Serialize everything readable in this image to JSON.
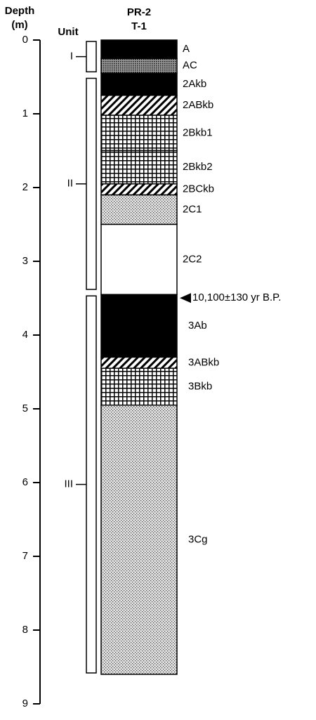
{
  "axis": {
    "title": "Depth",
    "unit": "(m)",
    "range": [
      0,
      9
    ],
    "ticks": [
      0,
      1,
      2,
      3,
      4,
      5,
      6,
      7,
      8,
      9
    ]
  },
  "column": {
    "title": "PR-2",
    "subtitle": "T-1"
  },
  "units_header": "Unit",
  "units": [
    {
      "label": "I",
      "top": 0,
      "bottom": 0.45
    },
    {
      "label": "II",
      "top": 0.5,
      "bottom": 3.4
    },
    {
      "label": "III",
      "top": 3.45,
      "bottom": 8.6
    }
  ],
  "horizons": [
    {
      "name": "A",
      "top": 0,
      "bottom": 0.25,
      "pattern": "black"
    },
    {
      "name": "AC",
      "top": 0.25,
      "bottom": 0.45,
      "pattern": "densedots"
    },
    {
      "name": "2Akb",
      "top": 0.45,
      "bottom": 0.75,
      "pattern": "black"
    },
    {
      "name": "2ABkb",
      "top": 0.75,
      "bottom": 1.02,
      "pattern": "diagonal"
    },
    {
      "name": "2Bkb1",
      "top": 1.02,
      "bottom": 1.5,
      "pattern": "grid"
    },
    {
      "name": "2Bkb2",
      "top": 1.5,
      "bottom": 1.95,
      "pattern": "grid"
    },
    {
      "name": "2BCkb",
      "top": 1.95,
      "bottom": 2.1,
      "pattern": "diagonal"
    },
    {
      "name": "2C1",
      "top": 2.1,
      "bottom": 2.5,
      "pattern": "dots"
    },
    {
      "name": "2C2",
      "top": 2.5,
      "bottom": 3.45,
      "pattern": "white"
    },
    {
      "name": "3Ab",
      "top": 3.45,
      "bottom": 4.3,
      "pattern": "black"
    },
    {
      "name": "3ABkb",
      "top": 4.3,
      "bottom": 4.45,
      "pattern": "diagonal"
    },
    {
      "name": "3Bkb",
      "top": 4.45,
      "bottom": 4.95,
      "pattern": "grid"
    },
    {
      "name": "3Cg",
      "top": 4.95,
      "bottom": 8.6,
      "pattern": "dots"
    }
  ],
  "annotation": {
    "text": "10,100±130 yr B.P.",
    "depth": 3.45
  }
}
